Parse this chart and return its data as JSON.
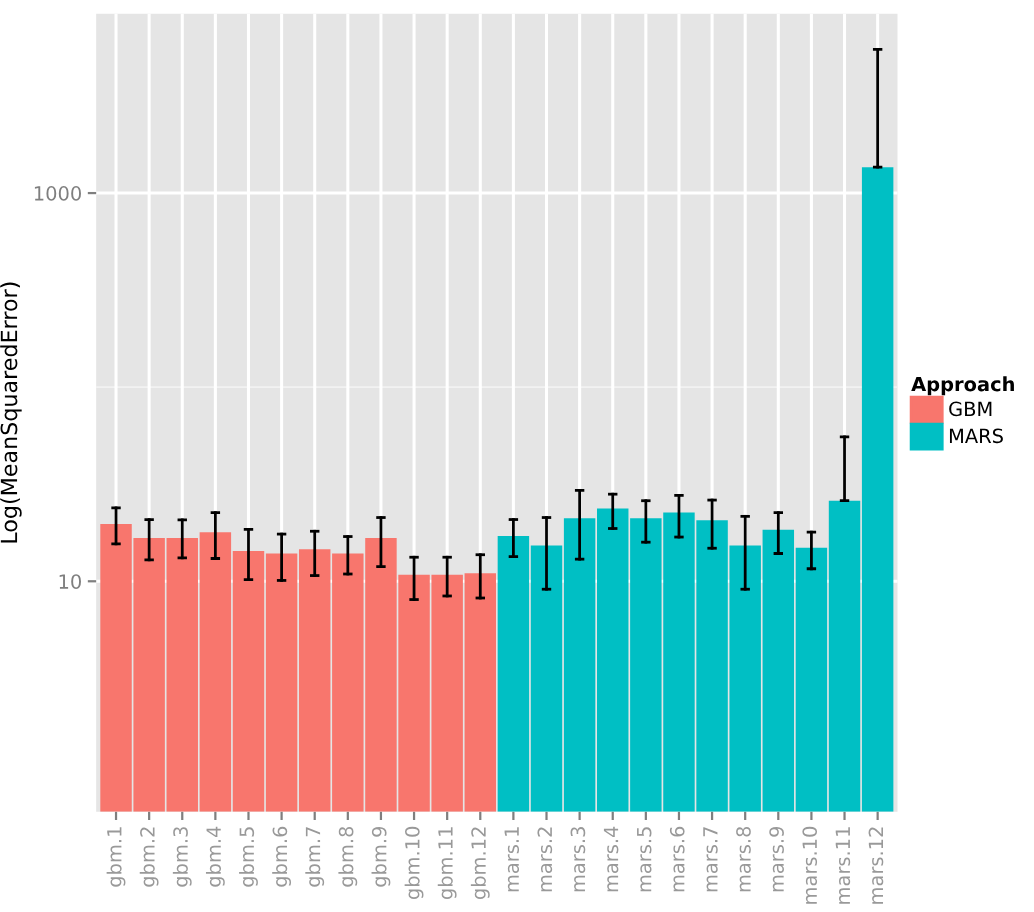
{
  "chart_data": {
    "type": "bar",
    "ylabel": "Log(MeanSquaredError)",
    "legend_title": "Approach",
    "legend": "right",
    "grid": true,
    "log": true,
    "categories": [
      "gbm.1",
      "gbm.2",
      "gbm.3",
      "gbm.4",
      "gbm.5",
      "gbm.6",
      "gbm.7",
      "gbm.8",
      "gbm.9",
      "gbm.10",
      "gbm.11",
      "gbm.12",
      "mars.1",
      "mars.2",
      "mars.3",
      "mars.4",
      "mars.5",
      "mars.6",
      "mars.7",
      "mars.8",
      "mars.9",
      "mars.10",
      "mars.11",
      "mars.12"
    ],
    "ylim": [
      0.65,
      8400
    ],
    "yticks": [
      10,
      1000
    ],
    "ref_lines": [
      {
        "axis": "y",
        "value": 100,
        "color": "#f2f2f2"
      }
    ],
    "series": [
      {
        "name": "GBM",
        "color": "#f8766d",
        "values": [
          19.7,
          16.7,
          16.7,
          17.9,
          14.3,
          13.9,
          14.6,
          13.9,
          16.7,
          10.8,
          10.8,
          11.0,
          null,
          null,
          null,
          null,
          null,
          null,
          null,
          null,
          null,
          null,
          null,
          null
        ],
        "errors": [
          [
            15.6,
            23.9
          ],
          [
            12.9,
            20.8
          ],
          [
            13.2,
            20.7
          ],
          [
            13.1,
            22.6
          ],
          [
            10.2,
            18.5
          ],
          [
            10.1,
            17.5
          ],
          [
            10.7,
            18.1
          ],
          [
            10.9,
            17.0
          ],
          [
            11.9,
            21.3
          ],
          [
            8.05,
            13.3
          ],
          [
            8.4,
            13.3
          ],
          [
            8.2,
            13.7
          ],
          null,
          null,
          null,
          null,
          null,
          null,
          null,
          null,
          null,
          null,
          null,
          null
        ]
      },
      {
        "name": "MARS",
        "color": "#00bfc4",
        "values": [
          null,
          null,
          null,
          null,
          null,
          null,
          null,
          null,
          null,
          null,
          null,
          null,
          17.1,
          15.3,
          21.1,
          23.7,
          21.1,
          22.6,
          20.6,
          15.3,
          18.4,
          14.9,
          26.0,
          1360
        ],
        "errors": [
          null,
          null,
          null,
          null,
          null,
          null,
          null,
          null,
          null,
          null,
          null,
          null,
          [
            13.4,
            20.8
          ],
          [
            9.1,
            21.3
          ],
          [
            13.0,
            29.4
          ],
          [
            18.7,
            28.1
          ],
          [
            15.9,
            26.0
          ],
          [
            16.9,
            27.7
          ],
          [
            14.8,
            26.2
          ],
          [
            9.1,
            21.6
          ],
          [
            13.9,
            22.6
          ],
          [
            11.6,
            17.9
          ],
          [
            26.0,
            55.4
          ],
          [
            1360,
            5500
          ]
        ]
      }
    ]
  }
}
